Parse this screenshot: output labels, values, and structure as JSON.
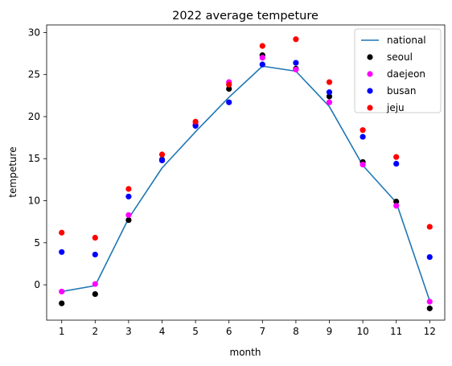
{
  "chart_data": {
    "type": "line",
    "title": "2022 average tempeture",
    "xlabel": "month",
    "ylabel": "tempeture",
    "x": [
      1,
      2,
      3,
      4,
      5,
      6,
      7,
      8,
      9,
      10,
      11,
      12
    ],
    "xticks": [
      "1",
      "2",
      "3",
      "4",
      "5",
      "6",
      "7",
      "8",
      "9",
      "10",
      "11",
      "12"
    ],
    "yticks": [
      "0",
      "5",
      "10",
      "15",
      "20",
      "25",
      "30"
    ],
    "xlim": [
      0.55,
      12.45
    ],
    "ylim": [
      -4.2,
      30.9
    ],
    "grid": false,
    "legend_position": "top-right",
    "series": [
      {
        "name": "national",
        "kind": "line",
        "color": "#1f77b4",
        "values": [
          -0.8,
          -0.1,
          7.9,
          13.9,
          18.2,
          22.3,
          26.0,
          25.4,
          21.2,
          14.2,
          9.8,
          -1.9
        ]
      },
      {
        "name": "seoul",
        "kind": "scatter",
        "color": "#000000",
        "values": [
          -2.2,
          -1.1,
          7.7,
          14.9,
          19.0,
          23.3,
          27.3,
          25.7,
          22.4,
          14.6,
          9.9,
          -2.8
        ]
      },
      {
        "name": "daejeon",
        "kind": "scatter",
        "color": "#ff00ff",
        "values": [
          -0.8,
          0.1,
          8.3,
          14.8,
          19.1,
          24.1,
          27.0,
          25.6,
          21.7,
          14.3,
          9.4,
          -2.0
        ]
      },
      {
        "name": "busan",
        "kind": "scatter",
        "color": "#0000ff",
        "values": [
          3.9,
          3.6,
          10.5,
          14.8,
          18.9,
          21.7,
          26.2,
          26.4,
          22.9,
          17.6,
          14.4,
          3.3
        ]
      },
      {
        "name": "jeju",
        "kind": "scatter",
        "color": "#ff0000",
        "values": [
          6.2,
          5.6,
          11.4,
          15.5,
          19.4,
          23.8,
          28.4,
          29.2,
          24.1,
          18.4,
          15.2,
          6.9
        ]
      }
    ]
  }
}
